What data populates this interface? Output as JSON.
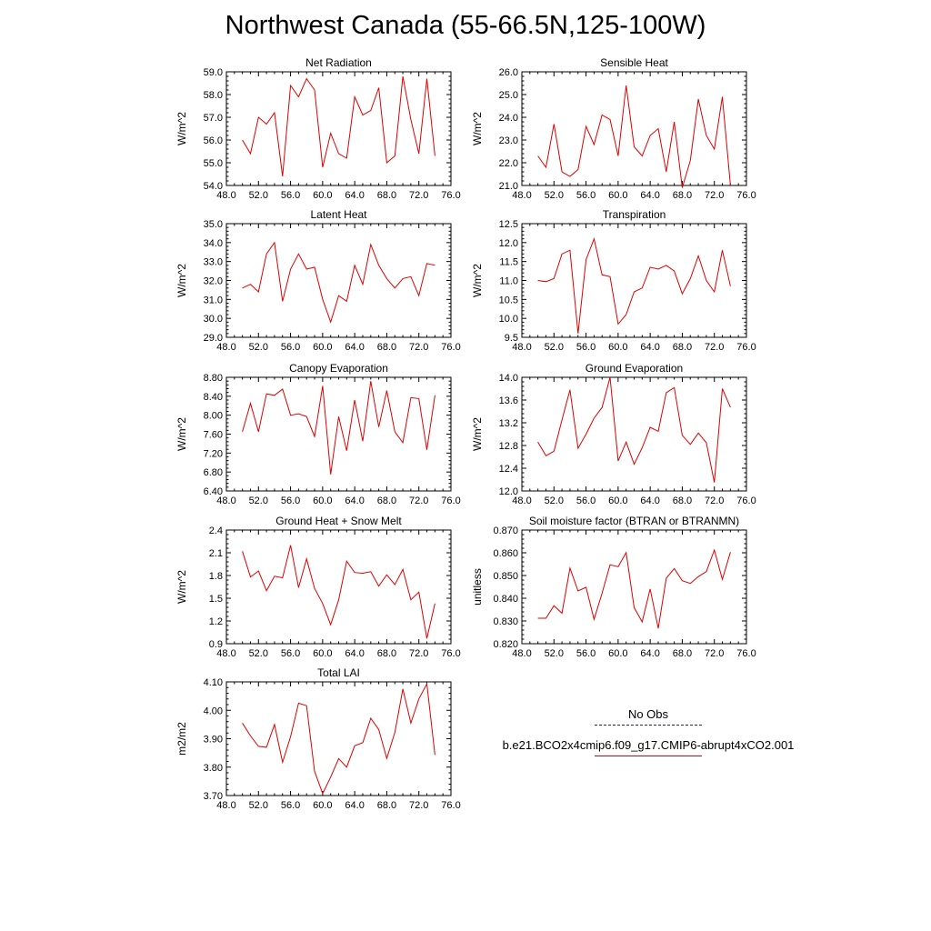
{
  "page_title": "Northwest Canada (55-66.5N,125-100W)",
  "legend": {
    "obs_label": "No Obs",
    "obs_color": "#1f1f8f",
    "case_label": "b.e21.BCO2x4cmip6.f09_g17.CMIP6-abrupt4xCO2.001",
    "case_color": "#e00000"
  },
  "chart_data": [
    {
      "type": "line",
      "title": "Net Radiation",
      "ylabel": "W/m^2",
      "xlim": [
        48,
        76
      ],
      "ylim": [
        54,
        59
      ],
      "x_ticks": [
        48,
        52,
        56,
        60,
        64,
        68,
        72,
        76
      ],
      "x_tick_labels": [
        "48.0",
        "52.0",
        "56.0",
        "60.0",
        "64.0",
        "68.0",
        "72.0",
        "76.0"
      ],
      "y_ticks": [
        54,
        55,
        56,
        57,
        58,
        59
      ],
      "y_tick_labels": [
        "54.0",
        "55.0",
        "56.0",
        "57.0",
        "58.0",
        "59.0"
      ],
      "x": [
        50,
        51,
        52,
        53,
        54,
        55,
        56,
        57,
        58,
        59,
        60,
        61,
        62,
        63,
        64,
        65,
        66,
        67,
        68,
        69,
        70,
        71,
        72,
        73,
        74
      ],
      "series": [
        {
          "color": "#e00000",
          "values": [
            56.0,
            55.4,
            57.0,
            56.7,
            57.2,
            54.4,
            58.4,
            57.9,
            58.7,
            58.2,
            54.8,
            56.3,
            55.4,
            55.2,
            57.9,
            57.1,
            57.3,
            58.3,
            55.0,
            55.3,
            58.8,
            56.9,
            55.4,
            58.7,
            55.3
          ]
        }
      ]
    },
    {
      "type": "line",
      "title": "Sensible Heat",
      "ylabel": "W/m^2",
      "xlim": [
        48,
        76
      ],
      "ylim": [
        21,
        26
      ],
      "x_ticks": [
        48,
        52,
        56,
        60,
        64,
        68,
        72,
        76
      ],
      "x_tick_labels": [
        "48.0",
        "52.0",
        "56.0",
        "60.0",
        "64.0",
        "68.0",
        "72.0",
        "76.0"
      ],
      "y_ticks": [
        21,
        22,
        23,
        24,
        25,
        26
      ],
      "y_tick_labels": [
        "21.0",
        "22.0",
        "23.0",
        "24.0",
        "25.0",
        "26.0"
      ],
      "x": [
        50,
        51,
        52,
        53,
        54,
        55,
        56,
        57,
        58,
        59,
        60,
        61,
        62,
        63,
        64,
        65,
        66,
        67,
        68,
        69,
        70,
        71,
        72,
        73,
        74
      ],
      "series": [
        {
          "color": "#e00000",
          "values": [
            22.3,
            21.8,
            23.7,
            21.6,
            21.4,
            21.7,
            23.6,
            22.8,
            24.1,
            23.9,
            22.3,
            25.4,
            22.7,
            22.3,
            23.2,
            23.5,
            21.6,
            23.8,
            20.9,
            22.1,
            24.8,
            23.2,
            22.6,
            24.9,
            21.0
          ]
        }
      ]
    },
    {
      "type": "line",
      "title": "Latent Heat",
      "ylabel": "W/m^2",
      "xlim": [
        48,
        76
      ],
      "ylim": [
        29,
        35
      ],
      "x_ticks": [
        48,
        52,
        56,
        60,
        64,
        68,
        72,
        76
      ],
      "x_tick_labels": [
        "48.0",
        "52.0",
        "56.0",
        "60.0",
        "64.0",
        "68.0",
        "72.0",
        "76.0"
      ],
      "y_ticks": [
        29,
        30,
        31,
        32,
        33,
        34,
        35
      ],
      "y_tick_labels": [
        "29.0",
        "30.0",
        "31.0",
        "32.0",
        "33.0",
        "34.0",
        "35.0"
      ],
      "x": [
        50,
        51,
        52,
        53,
        54,
        55,
        56,
        57,
        58,
        59,
        60,
        61,
        62,
        63,
        64,
        65,
        66,
        67,
        68,
        69,
        70,
        71,
        72,
        73,
        74
      ],
      "series": [
        {
          "color": "#e00000",
          "values": [
            31.6,
            31.8,
            31.4,
            33.4,
            34.0,
            30.9,
            32.6,
            33.4,
            32.6,
            32.7,
            31.0,
            29.8,
            31.2,
            30.9,
            32.8,
            31.8,
            33.9,
            32.8,
            32.1,
            31.6,
            32.1,
            32.2,
            31.2,
            32.9,
            32.8
          ]
        }
      ]
    },
    {
      "type": "line",
      "title": "Transpiration",
      "ylabel": "W/m^2",
      "xlim": [
        48,
        76
      ],
      "ylim": [
        9.5,
        12.5
      ],
      "x_ticks": [
        48,
        52,
        56,
        60,
        64,
        68,
        72,
        76
      ],
      "x_tick_labels": [
        "48.0",
        "52.0",
        "56.0",
        "60.0",
        "64.0",
        "68.0",
        "72.0",
        "76.0"
      ],
      "y_ticks": [
        9.5,
        10.0,
        10.5,
        11.0,
        11.5,
        12.0,
        12.5
      ],
      "y_tick_labels": [
        "9.5",
        "10.0",
        "10.5",
        "11.0",
        "11.5",
        "12.0",
        "12.5"
      ],
      "x": [
        50,
        51,
        52,
        53,
        54,
        55,
        56,
        57,
        58,
        59,
        60,
        61,
        62,
        63,
        64,
        65,
        66,
        67,
        68,
        69,
        70,
        71,
        72,
        73,
        74
      ],
      "series": [
        {
          "color": "#e00000",
          "values": [
            11.0,
            10.97,
            11.05,
            11.7,
            11.8,
            9.6,
            11.55,
            12.1,
            11.15,
            11.1,
            9.85,
            10.1,
            10.7,
            10.8,
            11.35,
            11.3,
            11.4,
            11.25,
            10.65,
            11.05,
            11.65,
            11.0,
            10.7,
            11.8,
            10.85
          ]
        }
      ]
    },
    {
      "type": "line",
      "title": "Canopy Evaporation",
      "ylabel": "W/m^2",
      "xlim": [
        48,
        76
      ],
      "ylim": [
        6.4,
        8.8
      ],
      "x_ticks": [
        48,
        52,
        56,
        60,
        64,
        68,
        72,
        76
      ],
      "x_tick_labels": [
        "48.0",
        "52.0",
        "56.0",
        "60.0",
        "64.0",
        "68.0",
        "72.0",
        "76.0"
      ],
      "y_ticks": [
        6.4,
        6.8,
        7.2,
        7.6,
        8.0,
        8.4,
        8.8
      ],
      "y_tick_labels": [
        "6.40",
        "6.80",
        "7.20",
        "7.60",
        "8.00",
        "8.40",
        "8.80"
      ],
      "x": [
        50,
        51,
        52,
        53,
        54,
        55,
        56,
        57,
        58,
        59,
        60,
        61,
        62,
        63,
        64,
        65,
        66,
        67,
        68,
        69,
        70,
        71,
        72,
        73,
        74
      ],
      "series": [
        {
          "color": "#e00000",
          "values": [
            7.65,
            8.25,
            7.65,
            8.45,
            8.42,
            8.55,
            8.0,
            8.03,
            7.97,
            7.55,
            8.62,
            6.75,
            7.97,
            7.25,
            8.32,
            7.45,
            8.72,
            7.75,
            8.52,
            7.65,
            7.42,
            8.37,
            8.35,
            7.27,
            8.42
          ]
        }
      ]
    },
    {
      "type": "line",
      "title": "Ground Evaporation",
      "ylabel": "W/m^2",
      "xlim": [
        48,
        76
      ],
      "ylim": [
        12.0,
        14.0
      ],
      "x_ticks": [
        48,
        52,
        56,
        60,
        64,
        68,
        72,
        76
      ],
      "x_tick_labels": [
        "48.0",
        "52.0",
        "56.0",
        "60.0",
        "64.0",
        "68.0",
        "72.0",
        "76.0"
      ],
      "y_ticks": [
        12.0,
        12.4,
        12.8,
        13.2,
        13.6,
        14.0
      ],
      "y_tick_labels": [
        "12.0",
        "12.4",
        "12.8",
        "13.2",
        "13.6",
        "14.0"
      ],
      "x": [
        50,
        51,
        52,
        53,
        54,
        55,
        56,
        57,
        58,
        59,
        60,
        61,
        62,
        63,
        64,
        65,
        66,
        67,
        68,
        69,
        70,
        71,
        72,
        73,
        74
      ],
      "series": [
        {
          "color": "#e00000",
          "values": [
            12.86,
            12.62,
            12.7,
            13.25,
            13.78,
            12.75,
            13.0,
            13.28,
            13.47,
            14.0,
            12.53,
            12.86,
            12.47,
            12.76,
            13.12,
            13.05,
            13.73,
            13.82,
            12.98,
            12.82,
            13.02,
            12.85,
            12.15,
            13.8,
            13.47
          ]
        }
      ]
    },
    {
      "type": "line",
      "title": "Ground Heat + Snow Melt",
      "ylabel": "W/m^2",
      "xlim": [
        48,
        76
      ],
      "ylim": [
        0.9,
        2.4
      ],
      "x_ticks": [
        48,
        52,
        56,
        60,
        64,
        68,
        72,
        76
      ],
      "x_tick_labels": [
        "48.0",
        "52.0",
        "56.0",
        "60.0",
        "64.0",
        "68.0",
        "72.0",
        "76.0"
      ],
      "y_ticks": [
        0.9,
        1.2,
        1.5,
        1.8,
        2.1,
        2.4
      ],
      "y_tick_labels": [
        "0.9",
        "1.2",
        "1.5",
        "1.8",
        "2.1",
        "2.4"
      ],
      "x": [
        50,
        51,
        52,
        53,
        54,
        55,
        56,
        57,
        58,
        59,
        60,
        61,
        62,
        63,
        64,
        65,
        66,
        67,
        68,
        69,
        70,
        71,
        72,
        73,
        74
      ],
      "series": [
        {
          "color": "#e00000",
          "values": [
            2.12,
            1.78,
            1.86,
            1.6,
            1.79,
            1.77,
            2.2,
            1.64,
            2.02,
            1.63,
            1.43,
            1.15,
            1.48,
            1.99,
            1.84,
            1.83,
            1.85,
            1.66,
            1.81,
            1.68,
            1.88,
            1.48,
            1.58,
            0.97,
            1.43
          ]
        }
      ]
    },
    {
      "type": "line",
      "title": "Soil moisture factor (BTRAN or BTRANMN)",
      "ylabel": "unitless",
      "xlim": [
        48,
        76
      ],
      "ylim": [
        0.82,
        0.87
      ],
      "x_ticks": [
        48,
        52,
        56,
        60,
        64,
        68,
        72,
        76
      ],
      "x_tick_labels": [
        "48.0",
        "52.0",
        "56.0",
        "60.0",
        "64.0",
        "68.0",
        "72.0",
        "76.0"
      ],
      "y_ticks": [
        0.82,
        0.83,
        0.84,
        0.85,
        0.86,
        0.87
      ],
      "y_tick_labels": [
        "0.820",
        "0.830",
        "0.840",
        "0.850",
        "0.860",
        "0.870"
      ],
      "x": [
        50,
        51,
        52,
        53,
        54,
        55,
        56,
        57,
        58,
        59,
        60,
        61,
        62,
        63,
        64,
        65,
        66,
        67,
        68,
        69,
        70,
        71,
        72,
        73,
        74
      ],
      "series": [
        {
          "color": "#e00000",
          "values": [
            0.8312,
            0.8312,
            0.8367,
            0.8334,
            0.8533,
            0.8432,
            0.8448,
            0.8307,
            0.8422,
            0.8547,
            0.8539,
            0.8601,
            0.8359,
            0.8296,
            0.8441,
            0.8267,
            0.8488,
            0.8531,
            0.8477,
            0.8465,
            0.8495,
            0.8517,
            0.8612,
            0.8483,
            0.8603
          ]
        }
      ]
    },
    {
      "type": "line",
      "title": "Total LAI",
      "ylabel": "m2/m2",
      "xlim": [
        48,
        76
      ],
      "ylim": [
        3.7,
        4.1
      ],
      "x_ticks": [
        48,
        52,
        56,
        60,
        64,
        68,
        72,
        76
      ],
      "x_tick_labels": [
        "48.0",
        "52.0",
        "56.0",
        "60.0",
        "64.0",
        "68.0",
        "72.0",
        "76.0"
      ],
      "y_ticks": [
        3.7,
        3.8,
        3.9,
        4.0,
        4.1
      ],
      "y_tick_labels": [
        "3.70",
        "3.80",
        "3.90",
        "4.00",
        "4.10"
      ],
      "x": [
        50,
        51,
        52,
        53,
        54,
        55,
        56,
        57,
        58,
        59,
        60,
        61,
        62,
        63,
        64,
        65,
        66,
        67,
        68,
        69,
        70,
        71,
        72,
        73,
        74
      ],
      "series": [
        {
          "color": "#e00000",
          "values": [
            3.955,
            3.91,
            3.873,
            3.87,
            3.95,
            3.817,
            3.907,
            4.025,
            4.016,
            3.785,
            3.707,
            3.765,
            3.83,
            3.8,
            3.875,
            3.886,
            3.972,
            3.932,
            3.831,
            3.922,
            4.075,
            3.955,
            4.04,
            4.093,
            3.843
          ]
        }
      ]
    }
  ]
}
